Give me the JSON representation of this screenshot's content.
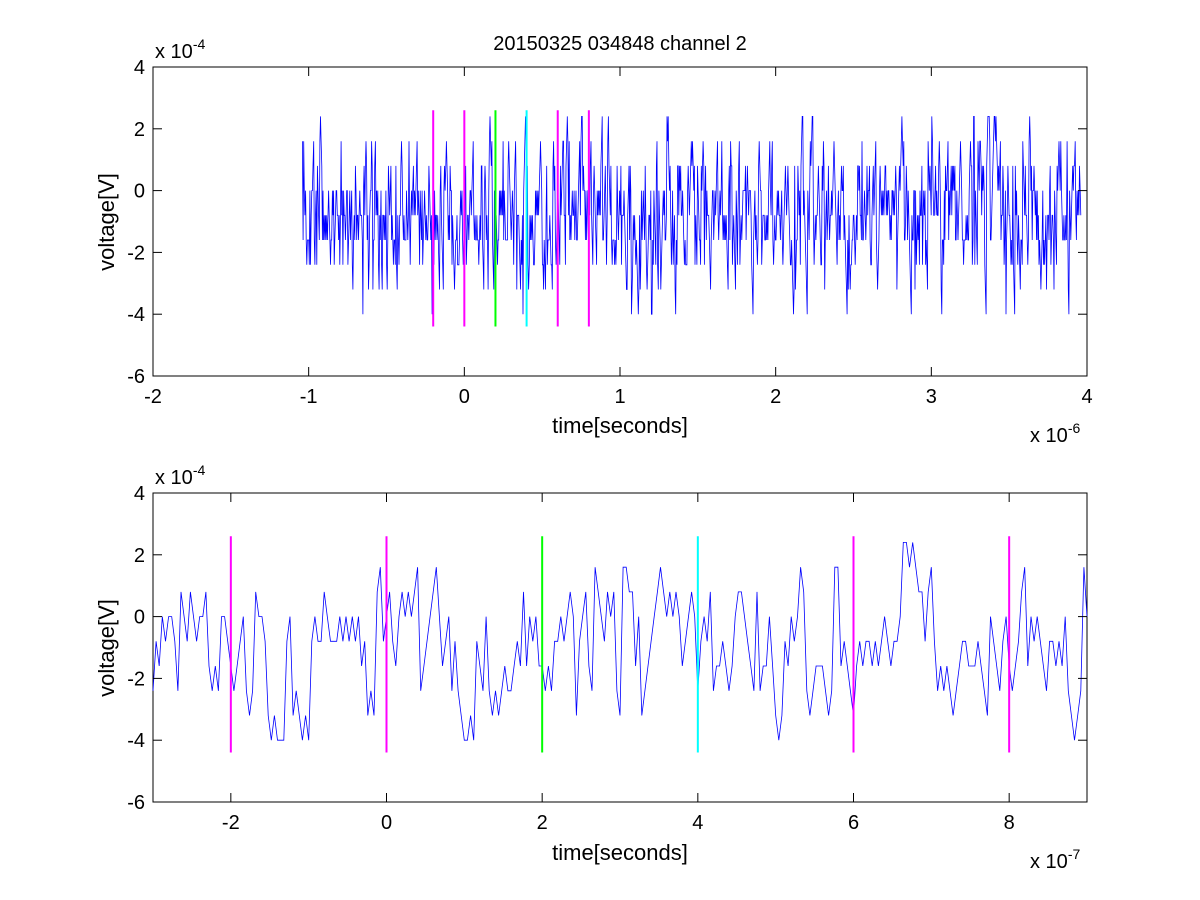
{
  "figure_title": "20150325 034848 channel 2",
  "chart_data": [
    {
      "type": "line",
      "title": "20150325 034848 channel 2",
      "xlabel": "time[seconds]",
      "ylabel": "voltage[V]",
      "x_multiplier_base": "x 10",
      "x_multiplier_exp": "-6",
      "y_multiplier_base": "x 10",
      "y_multiplier_exp": "-4",
      "xlim": [
        -2,
        4
      ],
      "ylim": [
        -6,
        4
      ],
      "xticks": [
        -2,
        -1,
        0,
        1,
        2,
        3,
        4
      ],
      "xtick_labels": [
        "-2",
        "-1",
        "0",
        "1",
        "2",
        "3",
        "4"
      ],
      "yticks": [
        -6,
        -4,
        -2,
        0,
        2,
        4
      ],
      "ytick_labels": [
        "-6",
        "-4",
        "-2",
        "0",
        "2",
        "4"
      ],
      "grid": false,
      "signal": {
        "color": "#0000ff",
        "x_start": -1.04,
        "x_end": 3.96,
        "points": 1250,
        "levels": [
          -4,
          -3.2,
          -2.4,
          -1.6,
          -0.8,
          0,
          0.8,
          1.6,
          2.4
        ],
        "seed": 7
      },
      "markers": [
        {
          "x": -0.2,
          "color": "#ff00ff",
          "y1": -4.4,
          "y2": 2.6
        },
        {
          "x": 0.0,
          "color": "#ff00ff",
          "y1": -4.4,
          "y2": 2.6
        },
        {
          "x": 0.2,
          "color": "#00ff00",
          "y1": -4.4,
          "y2": 2.6
        },
        {
          "x": 0.4,
          "color": "#00ffff",
          "y1": -4.4,
          "y2": 2.6
        },
        {
          "x": 0.6,
          "color": "#ff00ff",
          "y1": -4.4,
          "y2": 2.6
        },
        {
          "x": 0.8,
          "color": "#ff00ff",
          "y1": -4.4,
          "y2": 2.6
        }
      ]
    },
    {
      "type": "line",
      "title": "",
      "xlabel": "time[seconds]",
      "ylabel": "voltage[V]",
      "x_multiplier_base": "x 10",
      "x_multiplier_exp": "-7",
      "y_multiplier_base": "x 10",
      "y_multiplier_exp": "-4",
      "xlim": [
        -3,
        9
      ],
      "ylim": [
        -6,
        4
      ],
      "xticks": [
        -2,
        0,
        2,
        4,
        6,
        8
      ],
      "xtick_labels": [
        "-2",
        "0",
        "2",
        "4",
        "6",
        "8"
      ],
      "yticks": [
        -6,
        -4,
        -2,
        0,
        2,
        4
      ],
      "ytick_labels": [
        "-6",
        "-4",
        "-2",
        "0",
        "2",
        "4"
      ],
      "grid": false,
      "signal": {
        "color": "#0000ff",
        "x_start": -3,
        "x_end": 9,
        "points": 301,
        "levels": [
          -4,
          -3.2,
          -2.4,
          -1.6,
          -0.8,
          0,
          0.8,
          1.6,
          2.4
        ],
        "seed": 21
      },
      "markers": [
        {
          "x": -2,
          "color": "#ff00ff",
          "y1": -4.4,
          "y2": 2.6
        },
        {
          "x": 0,
          "color": "#ff00ff",
          "y1": -4.4,
          "y2": 2.6
        },
        {
          "x": 2,
          "color": "#00ff00",
          "y1": -4.4,
          "y2": 2.6
        },
        {
          "x": 4,
          "color": "#00ffff",
          "y1": -4.4,
          "y2": 2.6
        },
        {
          "x": 6,
          "color": "#ff00ff",
          "y1": -4.4,
          "y2": 2.6
        },
        {
          "x": 8,
          "color": "#ff00ff",
          "y1": -4.4,
          "y2": 2.6
        }
      ]
    }
  ]
}
